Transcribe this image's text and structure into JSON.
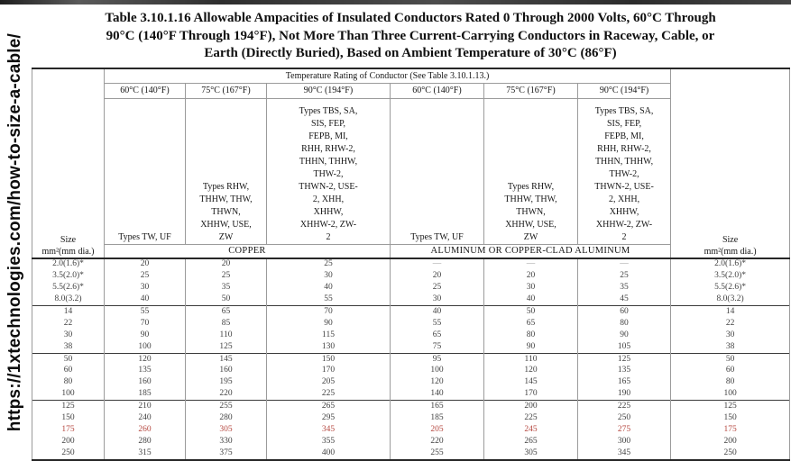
{
  "sidebar": {
    "url": "https://1xtechnologies.com/how-to-size-a-cable/"
  },
  "title_lines": [
    "Table 3.10.1.16 Allowable Ampacities of Insulated Conductors Rated 0 Through 2000 Volts, 60°C Through",
    "90°C (140°F Through 194°F), Not More Than Three Current-Carrying Conductors in Raceway, Cable, or",
    "Earth (Directly Buried), Based on Ambient Temperature of 30°C (86°F)"
  ],
  "table": {
    "temp_rating_header": "Temperature Rating of Conductor (See Table 3.10.1.13.)",
    "size_header_lines": [
      "Size",
      "mm²(mm dia.)"
    ],
    "temp_headers": [
      "60°C (140°F)",
      "75°C (167°F)",
      "90°C (194°F)",
      "60°C (140°F)",
      "75°C (167°F)",
      "90°C (194°F)"
    ],
    "types_tw_uf": "Types TW, UF",
    "types_75c_lines": [
      "Types RHW,",
      "THHW, THW,",
      "THWN,",
      "XHHW, USE,",
      "ZW"
    ],
    "types_90c_lines": [
      "Types TBS, SA,",
      "SIS, FEP,",
      "FEPB, MI,",
      "RHH, RHW-2,",
      "THHN, THHW,",
      "THW-2,",
      "THWN-2, USE-",
      "2, XHH,",
      "XHHW,",
      "XHHW-2, ZW-",
      "2"
    ],
    "material_copper": "COPPER",
    "material_aluminum": "ALUMINUM OR COPPER-CLAD ALUMINUM",
    "group_break_indices": [
      4,
      8,
      12
    ],
    "rows": [
      {
        "size": "2.0(1.6)*",
        "values": [
          "20",
          "20",
          "25",
          "—",
          "—",
          "—"
        ],
        "red": false
      },
      {
        "size": "3.5(2.0)*",
        "values": [
          "25",
          "25",
          "30",
          "20",
          "20",
          "25"
        ],
        "red": false
      },
      {
        "size": "5.5(2.6)*",
        "values": [
          "30",
          "35",
          "40",
          "25",
          "30",
          "35"
        ],
        "red": false
      },
      {
        "size": "8.0(3.2)",
        "values": [
          "40",
          "50",
          "55",
          "30",
          "40",
          "45"
        ],
        "red": false
      },
      {
        "size": "14",
        "values": [
          "55",
          "65",
          "70",
          "40",
          "50",
          "60"
        ],
        "red": false
      },
      {
        "size": "22",
        "values": [
          "70",
          "85",
          "90",
          "55",
          "65",
          "80"
        ],
        "red": false
      },
      {
        "size": "30",
        "values": [
          "90",
          "110",
          "115",
          "65",
          "80",
          "90"
        ],
        "red": false
      },
      {
        "size": "38",
        "values": [
          "100",
          "125",
          "130",
          "75",
          "90",
          "105"
        ],
        "red": false
      },
      {
        "size": "50",
        "values": [
          "120",
          "145",
          "150",
          "95",
          "110",
          "125"
        ],
        "red": false
      },
      {
        "size": "60",
        "values": [
          "135",
          "160",
          "170",
          "100",
          "120",
          "135"
        ],
        "red": false
      },
      {
        "size": "80",
        "values": [
          "160",
          "195",
          "205",
          "120",
          "145",
          "165"
        ],
        "red": false
      },
      {
        "size": "100",
        "values": [
          "185",
          "220",
          "225",
          "140",
          "170",
          "190"
        ],
        "red": false
      },
      {
        "size": "125",
        "values": [
          "210",
          "255",
          "265",
          "165",
          "200",
          "225"
        ],
        "red": false
      },
      {
        "size": "150",
        "values": [
          "240",
          "280",
          "295",
          "185",
          "225",
          "250"
        ],
        "red": false
      },
      {
        "size": "175",
        "values": [
          "260",
          "305",
          "345",
          "205",
          "245",
          "275"
        ],
        "red": true
      },
      {
        "size": "200",
        "values": [
          "280",
          "330",
          "355",
          "220",
          "265",
          "300"
        ],
        "red": false
      },
      {
        "size": "250",
        "values": [
          "315",
          "375",
          "400",
          "255",
          "305",
          "345"
        ],
        "red": false
      }
    ]
  },
  "colors": {
    "highlight_red": "#b5473f"
  }
}
